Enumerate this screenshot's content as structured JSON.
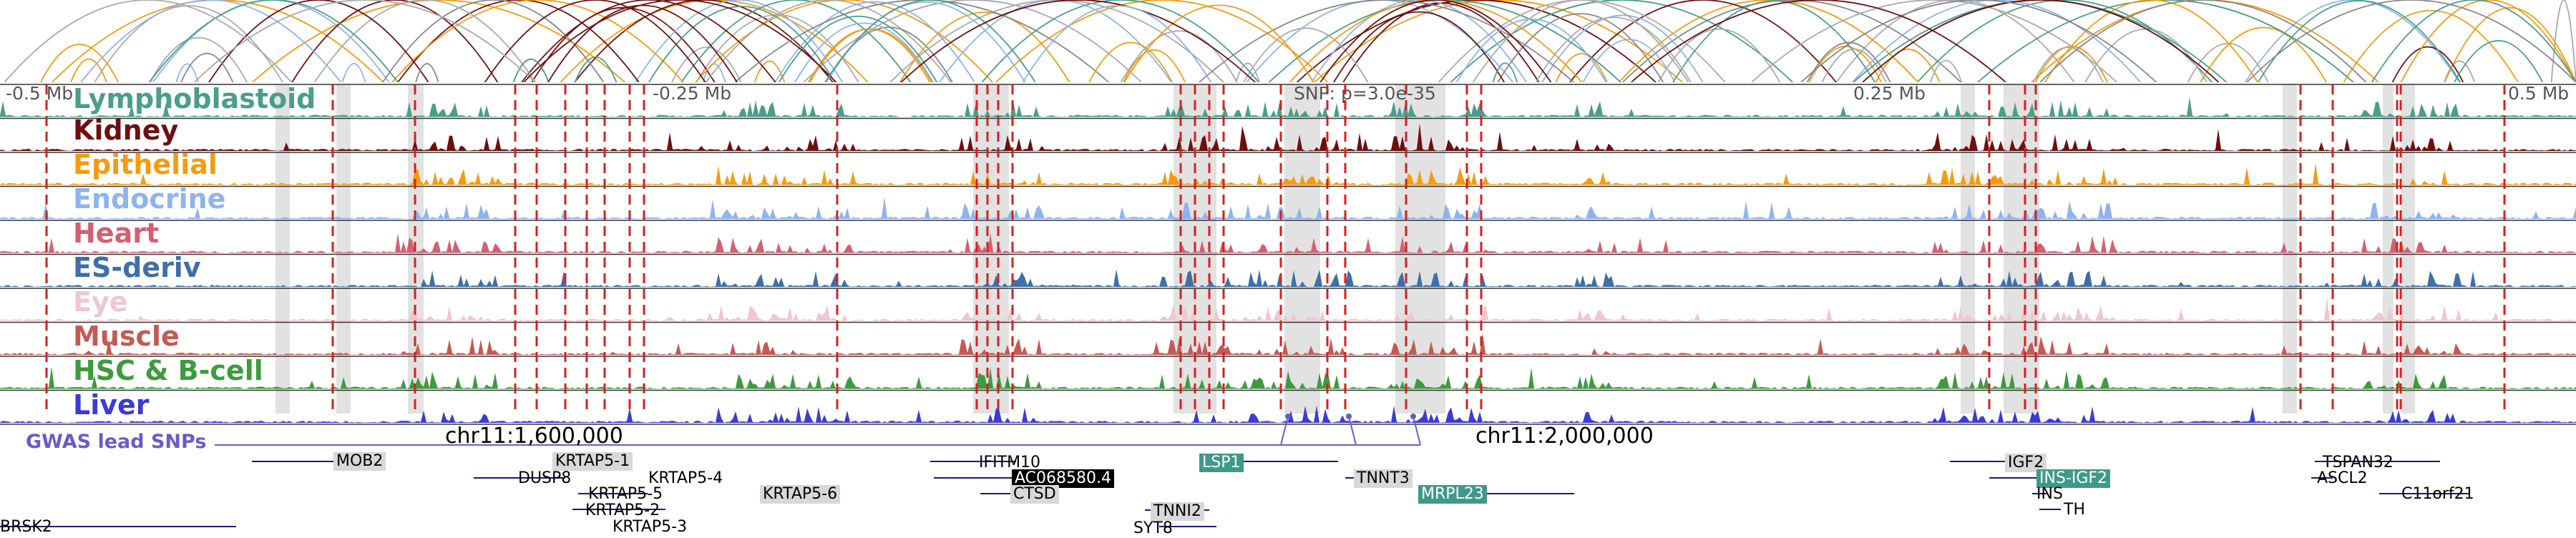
{
  "ruler": {
    "labels": [
      "-0.5 Mb",
      "-0.25 Mb",
      "SNP: p=3.0e-35",
      "0.25 Mb",
      "0.5 Mb"
    ]
  },
  "tracks": [
    {
      "name": "Lymphoblastoid",
      "color": "#4a9e8a"
    },
    {
      "name": "Kidney",
      "color": "#6e0f0f"
    },
    {
      "name": "Epithelial",
      "color": "#f39c12"
    },
    {
      "name": "Endocrine",
      "color": "#8fb3f0"
    },
    {
      "name": "Heart",
      "color": "#d45f72"
    },
    {
      "name": "ES-deriv",
      "color": "#3f6fa8"
    },
    {
      "name": "Eye",
      "color": "#f0c6cf"
    },
    {
      "name": "Muscle",
      "color": "#c45a55"
    },
    {
      "name": "HSC & B-cell",
      "color": "#3f9a3f"
    },
    {
      "name": "Liver",
      "color": "#3b3bd6"
    }
  ],
  "gwas": {
    "label": "GWAS lead SNPs",
    "color": "#6a5acd"
  },
  "coordinates": [
    "chr11:1,600,000",
    "chr11:2,000,000"
  ],
  "genes": [
    {
      "name": "MOB2",
      "style": "grey"
    },
    {
      "name": "KRTAP5-1",
      "style": "grey"
    },
    {
      "name": "DUSP8",
      "style": "plain"
    },
    {
      "name": "KRTAP5-4",
      "style": "plain"
    },
    {
      "name": "KRTAP5-5",
      "style": "plain"
    },
    {
      "name": "KRTAP5-2",
      "style": "plain"
    },
    {
      "name": "KRTAP5-3",
      "style": "plain"
    },
    {
      "name": "KRTAP5-6",
      "style": "grey"
    },
    {
      "name": "BRSK2",
      "style": "plain"
    },
    {
      "name": "IFITM10",
      "style": "plain"
    },
    {
      "name": "AC068580.4",
      "style": "black"
    },
    {
      "name": "CTSD",
      "style": "grey"
    },
    {
      "name": "LSP1",
      "style": "teal"
    },
    {
      "name": "TNNI2",
      "style": "grey"
    },
    {
      "name": "SYT8",
      "style": "plain"
    },
    {
      "name": "TNNT3",
      "style": "grey"
    },
    {
      "name": "MRPL23",
      "style": "teal"
    },
    {
      "name": "IGF2",
      "style": "grey"
    },
    {
      "name": "INS-IGF2",
      "style": "teal"
    },
    {
      "name": "INS",
      "style": "plain"
    },
    {
      "name": "TH",
      "style": "plain"
    },
    {
      "name": "TSPAN32",
      "style": "plain"
    },
    {
      "name": "ASCL2",
      "style": "plain"
    },
    {
      "name": "C11orf21",
      "style": "plain"
    }
  ],
  "colors": {
    "highlight_band": "#e2e2e2",
    "red_marker": "#d62020",
    "track_border": "#333333",
    "arc_colors": [
      "#4a9e8a",
      "#6e0f0f",
      "#f39c12",
      "#8fb3f0",
      "#888888",
      "#aaaaaa"
    ]
  }
}
